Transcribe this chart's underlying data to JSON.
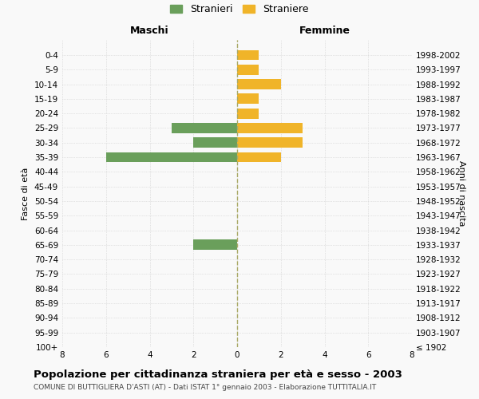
{
  "age_groups": [
    "0-4",
    "5-9",
    "10-14",
    "15-19",
    "20-24",
    "25-29",
    "30-34",
    "35-39",
    "40-44",
    "45-49",
    "50-54",
    "55-59",
    "60-64",
    "65-69",
    "70-74",
    "75-79",
    "80-84",
    "85-89",
    "90-94",
    "95-99",
    "100+"
  ],
  "birth_years": [
    "1998-2002",
    "1993-1997",
    "1988-1992",
    "1983-1987",
    "1978-1982",
    "1973-1977",
    "1968-1972",
    "1963-1967",
    "1958-1962",
    "1953-1957",
    "1948-1952",
    "1943-1947",
    "1938-1942",
    "1933-1937",
    "1928-1932",
    "1923-1927",
    "1918-1922",
    "1913-1917",
    "1908-1912",
    "1903-1907",
    "≤ 1902"
  ],
  "maschi": [
    0,
    0,
    0,
    0,
    0,
    3,
    2,
    6,
    0,
    0,
    0,
    0,
    0,
    2,
    0,
    0,
    0,
    0,
    0,
    0,
    0
  ],
  "femmine": [
    1,
    1,
    2,
    1,
    1,
    3,
    3,
    2,
    0,
    0,
    0,
    0,
    0,
    0,
    0,
    0,
    0,
    0,
    0,
    0,
    0
  ],
  "color_maschi": "#6a9f5b",
  "color_femmine": "#f0b429",
  "xlim": 8,
  "title": "Popolazione per cittadinanza straniera per età e sesso - 2003",
  "subtitle": "COMUNE DI BUTTIGLIERA D'ASTI (AT) - Dati ISTAT 1° gennaio 2003 - Elaborazione TUTTITALIA.IT",
  "ylabel_left": "Fasce di età",
  "ylabel_right": "Anni di nascita",
  "label_maschi": "Maschi",
  "label_femmine": "Femmine",
  "legend_stranieri": "Stranieri",
  "legend_straniere": "Straniere",
  "bg_color": "#f9f9f9",
  "grid_color": "#cccccc",
  "bar_height": 0.7,
  "tick_fontsize": 7.5,
  "title_fontsize": 9.5,
  "subtitle_fontsize": 6.5
}
